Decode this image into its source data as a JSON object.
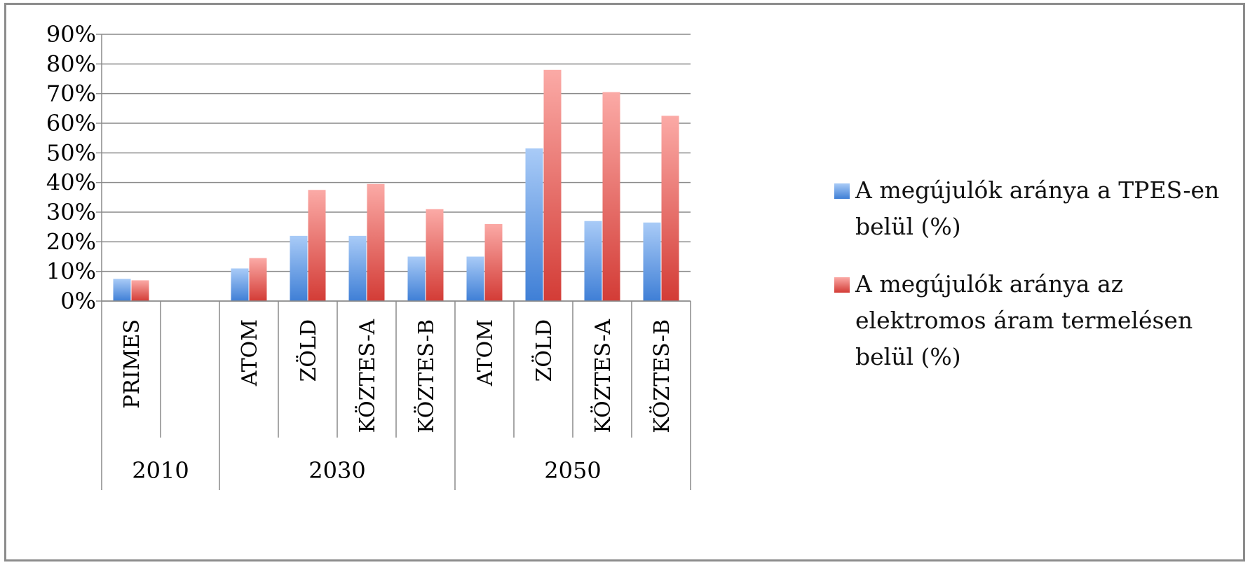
{
  "chart_data": {
    "type": "bar",
    "title": "",
    "xlabel": "",
    "ylabel": "",
    "ylim": [
      0,
      0.9
    ],
    "yticks": [
      "0%",
      "10%",
      "20%",
      "30%",
      "40%",
      "50%",
      "60%",
      "70%",
      "80%",
      "90%"
    ],
    "grid": true,
    "legend_position": "right",
    "groups": [
      {
        "label": "2010",
        "categories": [
          "PRIMES",
          ""
        ]
      },
      {
        "label": "2030",
        "categories": [
          "ATOM",
          "ZÖLD",
          "KÖZTES-A",
          "KÖZTES-B"
        ]
      },
      {
        "label": "2050",
        "categories": [
          "ATOM",
          "ZÖLD",
          "KÖZTES-A",
          "KÖZTES-B"
        ]
      }
    ],
    "categories": [
      "PRIMES",
      "",
      "ATOM",
      "ZÖLD",
      "KÖZTES-A",
      "KÖZTES-B",
      "ATOM",
      "ZÖLD",
      "KÖZTES-A",
      "KÖZTES-B"
    ],
    "series": [
      {
        "name": "A megújulók aránya a TPES-en belül (%)",
        "color": "#4a86d8",
        "values": [
          0.075,
          null,
          0.11,
          0.22,
          0.22,
          0.15,
          0.15,
          0.515,
          0.27,
          0.265
        ]
      },
      {
        "name": "A megújulók aránya az elektromos áram termelésen belül (%)",
        "color": "#d9403a",
        "values": [
          0.07,
          null,
          0.145,
          0.375,
          0.395,
          0.31,
          0.26,
          0.78,
          0.705,
          0.625
        ]
      }
    ]
  },
  "legend": {
    "items": [
      {
        "label": "A megújulók aránya a TPES-en belül (%)",
        "color": "#4a86d8"
      },
      {
        "label": "A megújulók aránya az elektromos áram termelésen belül (%)",
        "color": "#d9403a"
      }
    ]
  }
}
